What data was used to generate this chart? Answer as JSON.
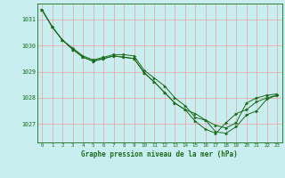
{
  "xlabel": "Graphe pression niveau de la mer (hPa)",
  "background_color": "#c8eef0",
  "grid_color": "#e8a0a0",
  "line_color": "#1a6b1a",
  "marker_color": "#1a6b1a",
  "xlim": [
    -0.5,
    23.5
  ],
  "ylim": [
    1026.3,
    1031.6
  ],
  "yticks": [
    1027,
    1028,
    1029,
    1030,
    1031
  ],
  "xticks": [
    0,
    1,
    2,
    3,
    4,
    5,
    6,
    7,
    8,
    9,
    10,
    11,
    12,
    13,
    14,
    15,
    16,
    17,
    18,
    19,
    20,
    21,
    22,
    23
  ],
  "series": [
    [
      1031.35,
      1030.7,
      1030.2,
      1029.9,
      1029.6,
      1029.45,
      1029.55,
      1029.65,
      1029.65,
      1029.6,
      1029.05,
      1028.75,
      1028.45,
      1028.0,
      1027.7,
      1027.25,
      1027.15,
      1026.95,
      1026.85,
      1027.05,
      1027.8,
      1028.0,
      1028.1,
      1028.15
    ],
    [
      1031.35,
      1030.7,
      1030.2,
      1029.85,
      1029.55,
      1029.4,
      1029.5,
      1029.6,
      1029.55,
      1029.5,
      1028.95,
      1028.6,
      1028.2,
      1027.8,
      1027.55,
      1027.1,
      1026.8,
      1026.65,
      1027.05,
      1027.4,
      1027.55,
      1027.85,
      1028.0,
      1028.1
    ],
    [
      1031.35,
      1030.7,
      1030.2,
      1029.85,
      1029.55,
      1029.4,
      1029.5,
      1029.6,
      1029.55,
      1029.5,
      1028.95,
      1028.6,
      1028.2,
      1027.8,
      1027.55,
      1027.4,
      1027.15,
      1026.7,
      1026.65,
      1026.9,
      1027.35,
      1027.5,
      1027.95,
      1028.1
    ]
  ]
}
